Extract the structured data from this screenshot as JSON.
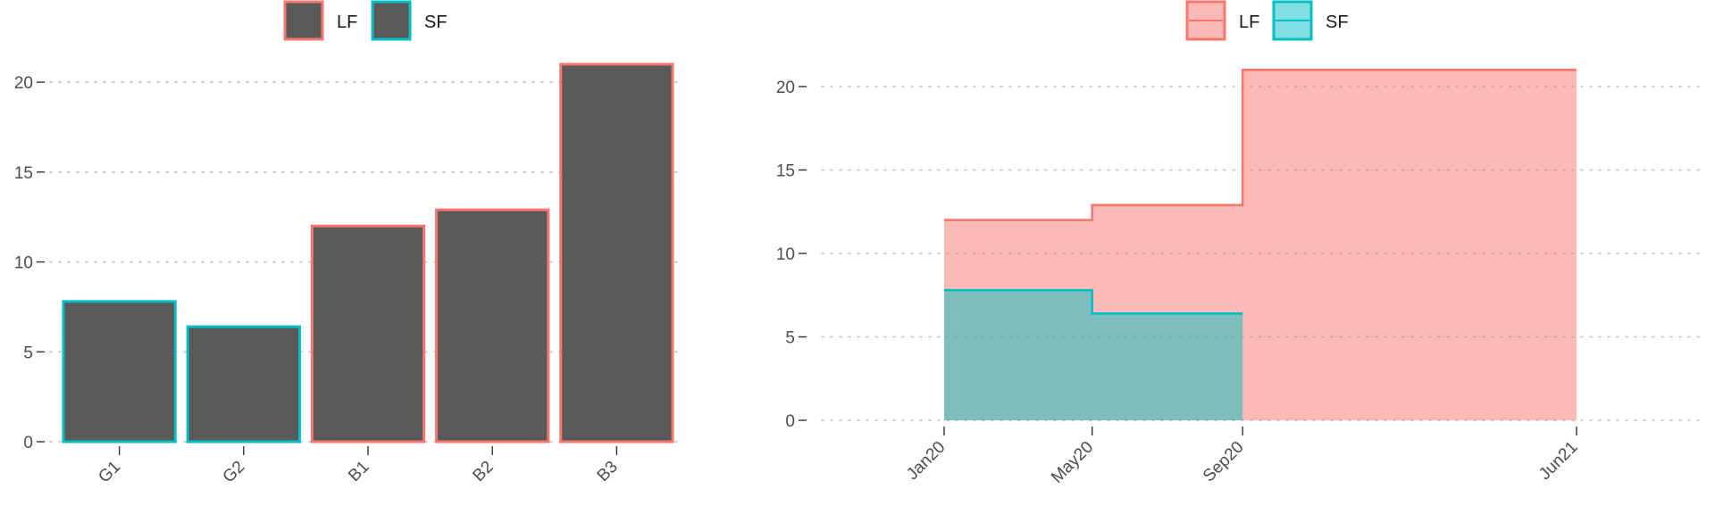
{
  "colors": {
    "lf": "#F8766D",
    "sf": "#00BFC4",
    "bar_fill": "#595959",
    "lf_area": "#F8766D",
    "sf_area": "#00BFC4"
  },
  "chart_data": [
    {
      "type": "bar",
      "categories": [
        "G1",
        "G2",
        "B1",
        "B2",
        "B3"
      ],
      "series": [
        {
          "name": "LF",
          "values": [
            null,
            null,
            12.0,
            12.9,
            21.0
          ]
        },
        {
          "name": "SF",
          "values": [
            7.8,
            6.4,
            null,
            null,
            null
          ]
        }
      ],
      "outline_group": [
        "SF",
        "SF",
        "LF",
        "LF",
        "LF"
      ],
      "values": [
        7.8,
        6.4,
        12.0,
        12.9,
        21.0
      ],
      "yticks": [
        0,
        5,
        10,
        15,
        20
      ],
      "ylim": [
        0,
        21
      ],
      "legend": {
        "position": "top",
        "entries": [
          "LF",
          "SF"
        ]
      },
      "grid": "horizontal dotted"
    },
    {
      "type": "area",
      "xticks": [
        "Jan20",
        "May20",
        "Sep20",
        "Jun21"
      ],
      "x_dates": [
        "2020-01-01",
        "2020-05-01",
        "2020-09-01",
        "2021-06-01"
      ],
      "series": [
        {
          "name": "LF",
          "steps": [
            {
              "x": "2020-01-01",
              "y": 12.0
            },
            {
              "x": "2020-05-01",
              "y": 12.9
            },
            {
              "x": "2020-09-01",
              "y": 21.0
            },
            {
              "x": "2021-06-01",
              "y": 21.0
            }
          ]
        },
        {
          "name": "SF",
          "steps": [
            {
              "x": "2020-01-01",
              "y": 7.8
            },
            {
              "x": "2020-05-01",
              "y": 6.4
            },
            {
              "x": "2020-09-01",
              "y": 6.4
            }
          ]
        }
      ],
      "yticks": [
        0,
        5,
        10,
        15,
        20
      ],
      "ylim": [
        0,
        21
      ],
      "legend": {
        "position": "top",
        "entries": [
          "LF",
          "SF"
        ]
      },
      "grid": "horizontal dotted"
    }
  ]
}
